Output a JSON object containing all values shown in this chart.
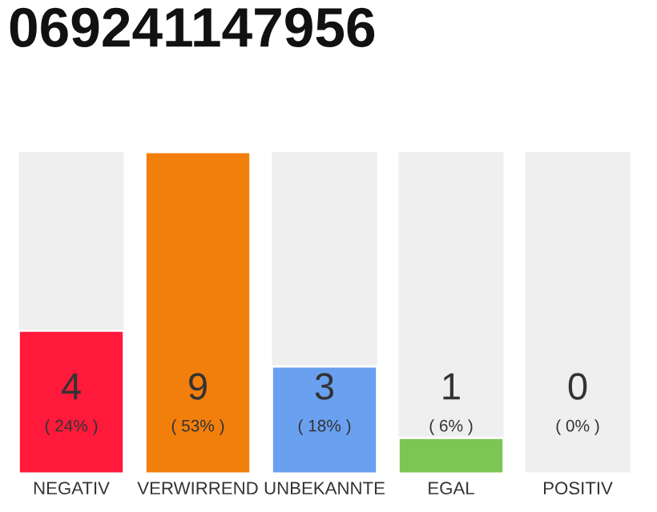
{
  "chart_data": {
    "type": "bar",
    "title": "069241147956",
    "categories": [
      "NEGATIV",
      "VERWIRREND",
      "UNBEKANNTE",
      "EGAL",
      "POSITIV"
    ],
    "values": [
      4,
      9,
      3,
      1,
      0
    ],
    "colors": [
      "#ff1a3c",
      "#f27f0c",
      "#6aa0f0",
      "#7cc654",
      null
    ],
    "value_labels": [
      "4\n( 24% )",
      "9\n( 53% )",
      "3\n( 18% )",
      "1\n( 6% )",
      "0\n( 0% )"
    ],
    "ylim": [
      0,
      9
    ],
    "tick_labels": "x"
  }
}
